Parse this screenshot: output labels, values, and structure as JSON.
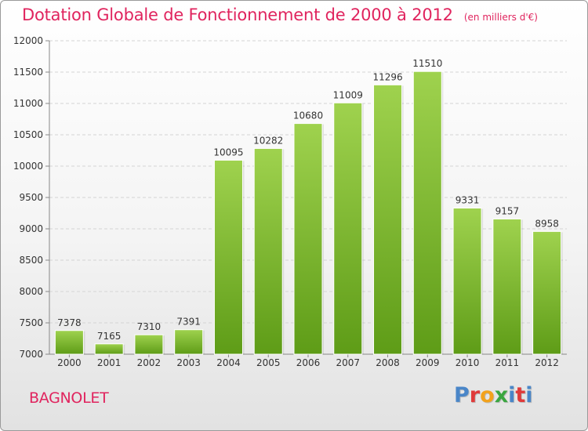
{
  "header": {
    "title": "Dotation Globale de Fonctionnement de 2000 à 2012",
    "unit": "(en milliers d'€)"
  },
  "footer": {
    "city": "BAGNOLET",
    "logo": "Proxiti"
  },
  "colors": {
    "title": "#e0245e",
    "bar_light": "#9fd24e",
    "bar_dark": "#5e9c17",
    "logo_letters": [
      "#4a86c8",
      "#e03a3a",
      "#f2a21c",
      "#3aa640",
      "#4a86c8",
      "#e03a3a",
      "#4a86c8"
    ]
  },
  "chart_data": {
    "type": "bar",
    "title": "Dotation Globale de Fonctionnement de 2000 à 2012",
    "subtitle": "(en milliers d'€)",
    "categories": [
      "2000",
      "2001",
      "2002",
      "2003",
      "2004",
      "2005",
      "2006",
      "2007",
      "2008",
      "2009",
      "2010",
      "2011",
      "2012"
    ],
    "values": [
      7378,
      7165,
      7310,
      7391,
      10095,
      10282,
      10680,
      11009,
      11296,
      11510,
      9331,
      9157,
      8958
    ],
    "ylim": [
      7000,
      12000
    ],
    "yticks": [
      7000,
      7500,
      8000,
      8500,
      9000,
      9500,
      10000,
      10500,
      11000,
      11500,
      12000
    ],
    "grid": true,
    "data_labels": true
  }
}
